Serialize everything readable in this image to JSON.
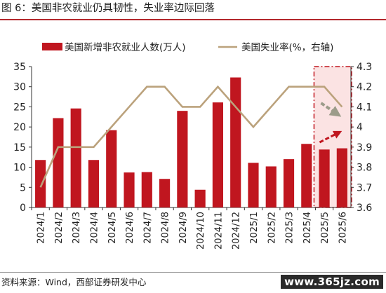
{
  "figure": {
    "title": "图 6：美国非农就业仍具韧性，失业率边际回落",
    "source": "资料来源：Wind，西部证券研发中心",
    "watermark": "www.365jz.com"
  },
  "chart_data": {
    "type": "bar+line",
    "categories": [
      "2024/1",
      "2024/2",
      "2024/3",
      "2024/4",
      "2024/5",
      "2024/6",
      "2024/7",
      "2024/8",
      "2024/9",
      "2024/10",
      "2024/11",
      "2024/12",
      "2025/1",
      "2025/2",
      "2025/3",
      "2025/4",
      "2025/5",
      "2025/6"
    ],
    "series": [
      {
        "name": "美国新增非农就业人数(万人)",
        "type": "bar",
        "axis": "left",
        "color": "#c0161f",
        "values": [
          11.8,
          22.2,
          24.6,
          11.8,
          19.2,
          8.7,
          8.8,
          7.1,
          24.0,
          4.4,
          26.1,
          32.3,
          11.1,
          10.2,
          12.0,
          15.8,
          14.4,
          14.7
        ]
      },
      {
        "name": "美国失业率(%，右轴)",
        "type": "line",
        "axis": "right",
        "color": "#bba27c",
        "values": [
          3.7,
          3.9,
          3.9,
          3.9,
          4.0,
          4.1,
          4.2,
          4.2,
          4.1,
          4.1,
          4.2,
          4.1,
          4.0,
          4.1,
          4.2,
          4.2,
          4.2,
          4.1
        ]
      }
    ],
    "y_left": {
      "min": 0,
      "max": 35,
      "ticks": [
        0,
        5,
        10,
        15,
        20,
        25,
        30,
        35
      ]
    },
    "y_right": {
      "min": 3.6,
      "max": 4.3,
      "ticks": [
        "3.6",
        "3.7",
        "3.8",
        "3.9",
        "4",
        "4.1",
        "4.2",
        "4.3"
      ]
    },
    "legend_position": "top",
    "grid": false,
    "highlight": {
      "categories": [
        "2025/5",
        "2025/6"
      ],
      "fill": "#fbe3e3",
      "border": "#c0161f"
    }
  }
}
